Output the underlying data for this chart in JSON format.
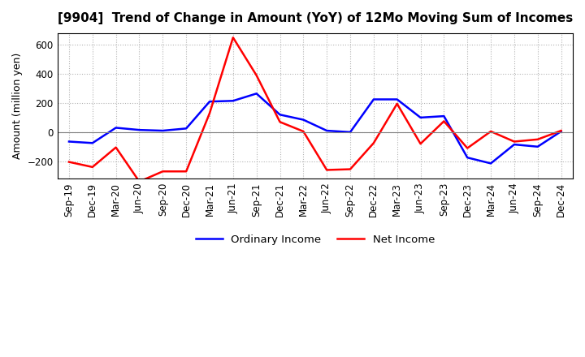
{
  "title": "[9904]  Trend of Change in Amount (YoY) of 12Mo Moving Sum of Incomes",
  "ylabel": "Amount (million yen)",
  "ylim": [
    -320,
    680
  ],
  "yticks": [
    -200,
    0,
    200,
    400,
    600
  ],
  "legend_labels": [
    "Ordinary Income",
    "Net Income"
  ],
  "line_colors": [
    "#0000ff",
    "#ff0000"
  ],
  "x_labels": [
    "Sep-19",
    "Dec-19",
    "Mar-20",
    "Jun-20",
    "Sep-20",
    "Dec-20",
    "Mar-21",
    "Jun-21",
    "Sep-21",
    "Dec-21",
    "Mar-22",
    "Jun-22",
    "Sep-22",
    "Dec-22",
    "Mar-23",
    "Jun-23",
    "Sep-23",
    "Dec-23",
    "Mar-24",
    "Jun-24",
    "Sep-24",
    "Dec-24"
  ],
  "ordinary_income": [
    -65,
    -75,
    30,
    15,
    10,
    25,
    210,
    215,
    265,
    120,
    85,
    10,
    0,
    225,
    225,
    100,
    110,
    -175,
    -215,
    -85,
    -100,
    5
  ],
  "net_income": [
    -205,
    -240,
    -105,
    -340,
    -270,
    -270,
    130,
    650,
    390,
    70,
    5,
    -260,
    -255,
    -75,
    195,
    -80,
    75,
    -110,
    5,
    -65,
    -50,
    10
  ]
}
